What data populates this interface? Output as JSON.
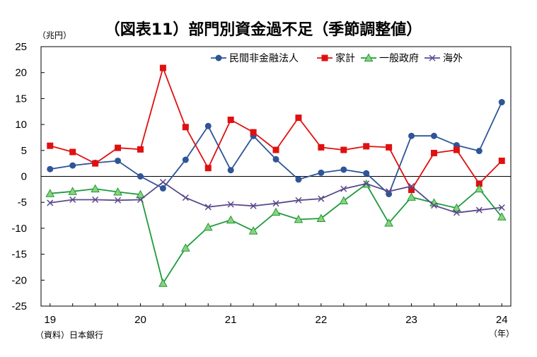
{
  "chart_data": {
    "type": "line",
    "title": "（図表11）部門別資金過不足（季節調整値）",
    "ylabel": "（兆円）",
    "xunit": "（年）",
    "source": "（資料）日本銀行",
    "ylim": [
      -25,
      25
    ],
    "yticks": [
      25,
      20,
      15,
      10,
      5,
      0,
      -5,
      -10,
      -15,
      -20,
      -25
    ],
    "xtick_labels": [
      "19",
      "20",
      "21",
      "22",
      "23",
      "24"
    ],
    "x": [
      "2019Q1",
      "2019Q2",
      "2019Q3",
      "2019Q4",
      "2020Q1",
      "2020Q2",
      "2020Q3",
      "2020Q4",
      "2021Q1",
      "2021Q2",
      "2021Q3",
      "2021Q4",
      "2022Q1",
      "2022Q2",
      "2022Q3",
      "2022Q4",
      "2023Q1",
      "2023Q2",
      "2023Q3",
      "2023Q4",
      "2024Q1"
    ],
    "legend_position": "top-right",
    "grid": false,
    "series": [
      {
        "name": "民間非金融法人",
        "color": "#2E5597",
        "marker": "circle",
        "values": [
          1.4,
          2.1,
          2.6,
          3.0,
          0.0,
          -2.3,
          3.2,
          9.7,
          1.2,
          7.8,
          3.3,
          -0.6,
          0.7,
          1.3,
          0.6,
          -3.4,
          7.8,
          7.8,
          6.0,
          4.9,
          14.3
        ]
      },
      {
        "name": "家計",
        "color": "#E01010",
        "marker": "square",
        "values": [
          5.9,
          4.7,
          2.5,
          5.5,
          5.2,
          20.9,
          9.5,
          1.6,
          10.9,
          8.5,
          5.1,
          11.3,
          5.6,
          5.1,
          5.8,
          5.6,
          -2.6,
          4.5,
          5.1,
          -1.4,
          3.0
        ]
      },
      {
        "name": "一般政府",
        "color": "#1E9A3C",
        "fill": "#8CD27A",
        "marker": "triangle",
        "values": [
          -3.3,
          -2.9,
          -2.4,
          -3.0,
          -3.5,
          -20.6,
          -13.8,
          -9.8,
          -8.4,
          -10.5,
          -6.9,
          -8.3,
          -8.1,
          -4.7,
          -1.5,
          -9.0,
          -4.0,
          -5.1,
          -6.1,
          -2.4,
          -7.8
        ]
      },
      {
        "name": "海外",
        "color": "#5B4A8B",
        "marker": "x",
        "values": [
          -5.1,
          -4.5,
          -4.5,
          -4.6,
          -4.5,
          -1.1,
          -4.1,
          -5.9,
          -5.4,
          -5.7,
          -5.2,
          -4.6,
          -4.3,
          -2.4,
          -1.4,
          -2.9,
          -1.9,
          -5.6,
          -7.0,
          -6.5,
          -6.0
        ]
      }
    ]
  }
}
